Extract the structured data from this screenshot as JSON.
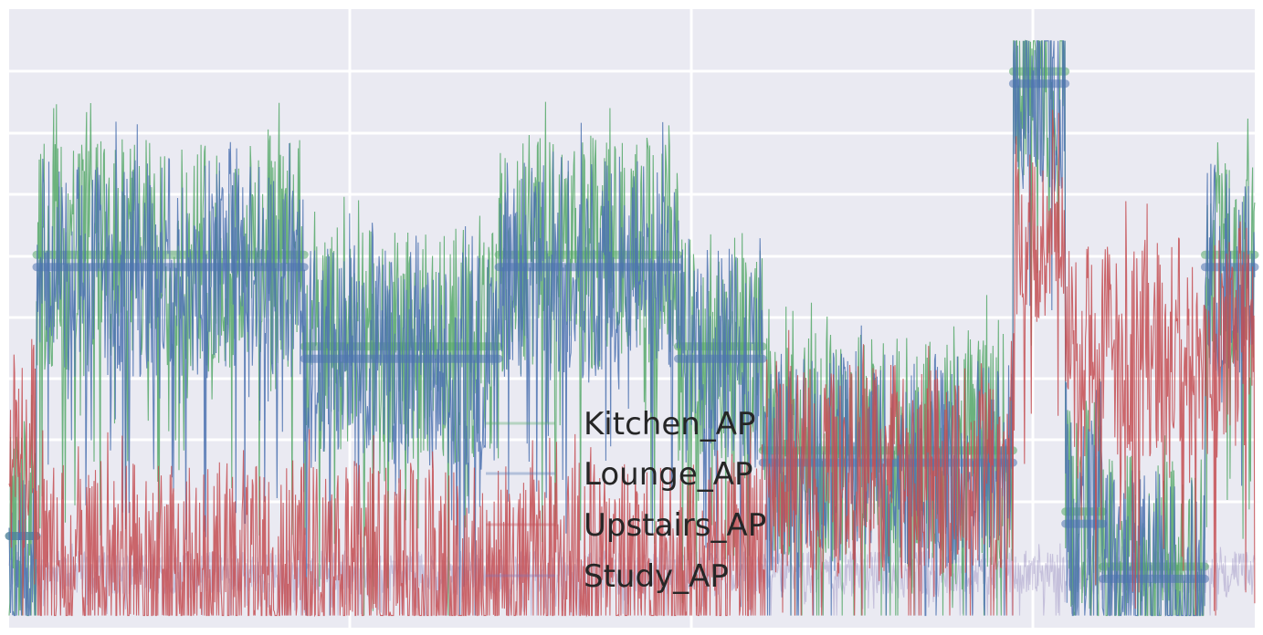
{
  "chart_data": {
    "type": "line",
    "title": "",
    "xlabel": "",
    "ylabel": "",
    "xlim": [
      0,
      1000
    ],
    "ylim": [
      0,
      10
    ],
    "grid": true,
    "style": "seaborn-darkgrid",
    "background_color": "#eaeaf2",
    "grid_color": "#ffffff",
    "legend": {
      "position": "lower-center",
      "entries": [
        "Kitchen_AP",
        "Lounge_AP",
        "Upstairs_AP",
        "Study_AP"
      ]
    },
    "series": [
      {
        "name": "Kitchen_AP",
        "color": "#55a868",
        "description": "green noisy line; pale thick line marks the segment level",
        "levels": [
          {
            "x0": 0,
            "x1": 22,
            "y": 1.5
          },
          {
            "x0": 22,
            "x1": 237,
            "y": 6.1
          },
          {
            "x0": 237,
            "x1": 393,
            "y": 4.6
          },
          {
            "x0": 393,
            "x1": 537,
            "y": 6.1
          },
          {
            "x0": 537,
            "x1": 605,
            "y": 4.6
          },
          {
            "x0": 605,
            "x1": 806,
            "y": 2.9
          },
          {
            "x0": 806,
            "x1": 848,
            "y": 9.1
          },
          {
            "x0": 848,
            "x1": 878,
            "y": 1.9
          },
          {
            "x0": 878,
            "x1": 960,
            "y": 1.0
          },
          {
            "x0": 960,
            "x1": 1000,
            "y": 6.1
          }
        ]
      },
      {
        "name": "Lounge_AP",
        "color": "#4c72b0",
        "description": "blue noisy line; pale thick line marks the segment level",
        "levels": [
          {
            "x0": 0,
            "x1": 22,
            "y": 1.5
          },
          {
            "x0": 22,
            "x1": 237,
            "y": 5.9
          },
          {
            "x0": 237,
            "x1": 393,
            "y": 4.4
          },
          {
            "x0": 393,
            "x1": 537,
            "y": 5.9
          },
          {
            "x0": 537,
            "x1": 605,
            "y": 4.4
          },
          {
            "x0": 605,
            "x1": 806,
            "y": 2.7
          },
          {
            "x0": 806,
            "x1": 848,
            "y": 8.9
          },
          {
            "x0": 848,
            "x1": 878,
            "y": 1.7
          },
          {
            "x0": 878,
            "x1": 960,
            "y": 0.8
          },
          {
            "x0": 960,
            "x1": 1000,
            "y": 5.9
          }
        ]
      },
      {
        "name": "Upstairs_AP",
        "color": "#c44e52",
        "description": "red noisy line",
        "levels": [
          {
            "x0": 0,
            "x1": 22,
            "y": 2.8
          },
          {
            "x0": 22,
            "x1": 237,
            "y": 0.9
          },
          {
            "x0": 237,
            "x1": 393,
            "y": 0.9
          },
          {
            "x0": 393,
            "x1": 537,
            "y": 0.9
          },
          {
            "x0": 537,
            "x1": 605,
            "y": 1.0
          },
          {
            "x0": 605,
            "x1": 806,
            "y": 2.6
          },
          {
            "x0": 806,
            "x1": 848,
            "y": 6.7
          },
          {
            "x0": 848,
            "x1": 960,
            "y": 4.6
          },
          {
            "x0": 960,
            "x1": 1000,
            "y": 4.6
          }
        ]
      },
      {
        "name": "Study_AP",
        "color": "#8172b2",
        "description": "purple line, mostly hidden behind the others",
        "levels": [
          {
            "x0": 0,
            "x1": 1000,
            "y": 0.9
          }
        ]
      }
    ]
  }
}
